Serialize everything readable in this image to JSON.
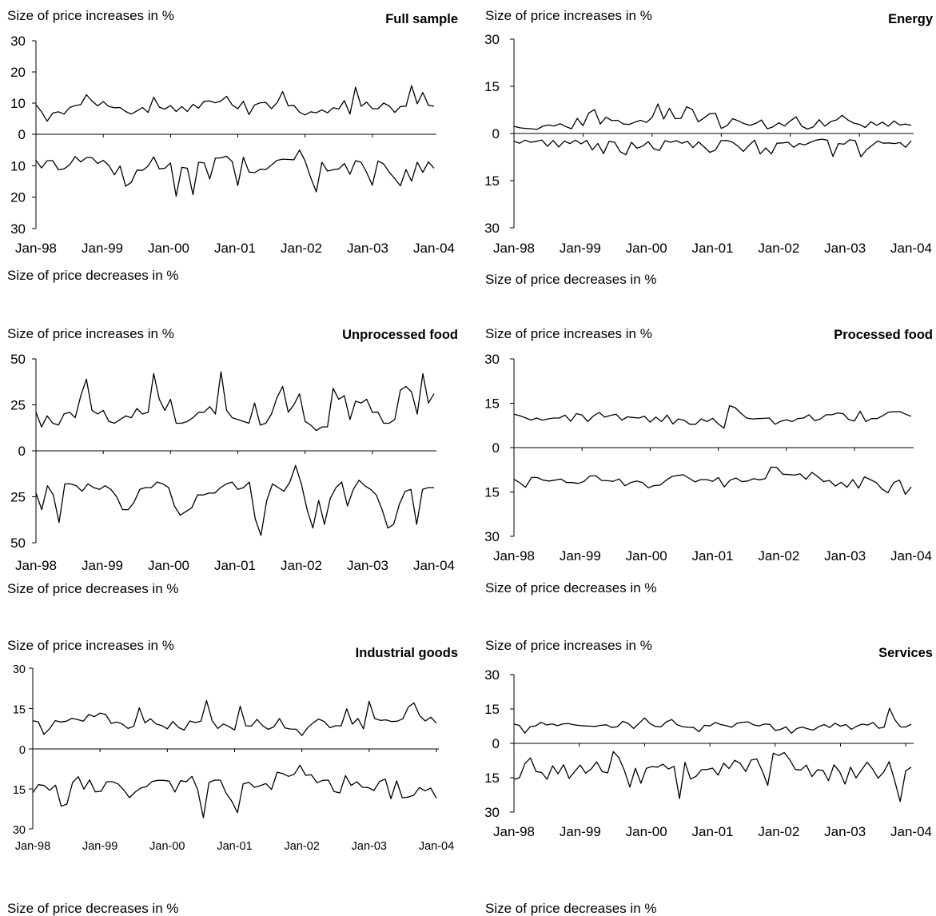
{
  "chart_data": [
    {
      "type": "line",
      "title": "Full sample",
      "ylabel_top": "Size of price increases in %",
      "ylabel_bottom": "Size of price decreases in %",
      "yticks": [
        30,
        20,
        10,
        0,
        10,
        20,
        30
      ],
      "xticks": [
        "Jan-98",
        "Jan-99",
        "Jan-00",
        "Jan-01",
        "Jan-02",
        "Jan-03",
        "Jan-04"
      ],
      "y_range": [
        -30,
        30
      ],
      "series": [
        {
          "values": [
            9.5,
            7.2,
            4.2,
            6.8,
            7.2,
            6.5,
            8.6,
            9.2,
            9.5,
            12.7,
            10.7,
            9.1,
            10.5,
            8.9,
            8.5,
            8.6,
            7.3,
            6.5,
            7.5,
            8.6,
            7.0,
            11.9,
            8.7,
            8.1,
            9.2,
            7.3,
            8.9,
            7.3,
            9.6,
            8.4,
            10.6,
            10.7,
            10.1,
            10.7,
            12.2,
            9.4,
            8.2,
            10.6,
            6.3,
            9.4,
            10.1,
            10.2,
            8.2,
            10.1,
            13.7,
            9.1,
            9.3,
            7.1,
            6.2,
            7.2,
            6.9,
            7.8,
            6.9,
            8.5,
            8.1,
            10.8,
            6.5,
            15.1,
            9.0,
            10.3,
            8.2,
            8.2,
            10.0,
            9.1,
            7.0,
            8.9,
            9.0,
            15.6,
            9.8,
            13.4,
            9.3,
            9.0
          ]
        },
        {
          "values": [
            -8.3,
            -10.7,
            -8.4,
            -8.4,
            -11.3,
            -11.0,
            -9.7,
            -7.1,
            -8.8,
            -7.4,
            -7.4,
            -9.3,
            -8.3,
            -9.9,
            -12.9,
            -10.1,
            -16.5,
            -15.3,
            -11.4,
            -11.5,
            -10.1,
            -7.2,
            -11.0,
            -10.8,
            -9.1,
            -19.7,
            -10.5,
            -10.8,
            -19.2,
            -8.9,
            -9.1,
            -14.2,
            -7.6,
            -7.5,
            -7.0,
            -8.7,
            -16.3,
            -7.3,
            -12.0,
            -12.2,
            -11.1,
            -11.2,
            -9.8,
            -8.3,
            -7.9,
            -8.0,
            -8.1,
            -5.0,
            -8.5,
            -13.8,
            -18.3,
            -8.9,
            -11.7,
            -11.3,
            -11.0,
            -9.3,
            -12.7,
            -8.4,
            -8.9,
            -12.2,
            -16.2,
            -8.5,
            -9.4,
            -12.0,
            -14.1,
            -16.4,
            -11.2,
            -14.9,
            -8.9,
            -12.1,
            -8.8,
            -10.8
          ]
        }
      ]
    },
    {
      "type": "line",
      "title": "Energy",
      "ylabel_top": "Size of price increases in %",
      "ylabel_bottom": "Size of price decreases in %",
      "yticks": [
        30,
        15,
        0,
        15,
        30
      ],
      "xticks": [
        "Jan-98",
        "Jan-99",
        "Jan-00",
        "Jan-01",
        "Jan-02",
        "Jan-03",
        "Jan-04"
      ],
      "y_range": [
        -30,
        30
      ],
      "series": [
        {
          "values": [
            2.3,
            1.8,
            1.6,
            1.5,
            1.3,
            2.3,
            2.7,
            2.4,
            3.1,
            2.2,
            1.5,
            4.8,
            2.5,
            6.5,
            7.6,
            3.0,
            5.2,
            4.1,
            4.2,
            3.0,
            2.9,
            3.6,
            4.2,
            3.5,
            5.1,
            9.4,
            4.6,
            8.0,
            4.7,
            4.8,
            8.5,
            7.6,
            3.7,
            4.9,
            6.3,
            6.4,
            1.6,
            2.5,
            4.7,
            4.0,
            3.1,
            2.6,
            3.2,
            4.3,
            1.5,
            2.1,
            3.4,
            2.4,
            4.0,
            5.3,
            2.3,
            1.4,
            2.1,
            4.4,
            2.3,
            3.8,
            4.3,
            5.8,
            4.3,
            3.3,
            2.9,
            1.9,
            3.7,
            2.6,
            3.6,
            2.3,
            4.0,
            2.7,
            3.0,
            2.6
          ]
        },
        {
          "values": [
            -2.5,
            -3.1,
            -2.1,
            -2.8,
            -2.5,
            -2.1,
            -4.1,
            -2.2,
            -4.3,
            -2.4,
            -3.2,
            -2.1,
            -3.3,
            -2.2,
            -5.2,
            -3.2,
            -6.4,
            -2.5,
            -2.8,
            -5.8,
            -6.8,
            -2.8,
            -4.7,
            -4.0,
            -2.6,
            -4.9,
            -5.4,
            -2.3,
            -2.8,
            -2.3,
            -3.1,
            -2.5,
            -4.5,
            -2.7,
            -4.3,
            -6.0,
            -5.3,
            -2.3,
            -2.2,
            -2.7,
            -4.0,
            -5.7,
            -3.8,
            -2.1,
            -6.5,
            -4.6,
            -6.5,
            -3.1,
            -3.0,
            -2.8,
            -4.4,
            -3.2,
            -3.6,
            -2.8,
            -2.1,
            -1.8,
            -2.1,
            -7.3,
            -3.2,
            -3.4,
            -2.0,
            -2.3,
            -7.4,
            -5.2,
            -3.8,
            -2.4,
            -3.1,
            -3.0,
            -3.2,
            -2.9,
            -4.4,
            -2.3
          ]
        }
      ]
    },
    {
      "type": "line",
      "title": "Unprocessed food",
      "ylabel_top": "Size of price increases in %",
      "ylabel_bottom": "Size of price decreases in %",
      "yticks": [
        50,
        25,
        0,
        25,
        50
      ],
      "xticks": [
        "Jan-98",
        "Jan-99",
        "Jan-00",
        "Jan-01",
        "Jan-02",
        "Jan-03",
        "Jan-04"
      ],
      "y_range": [
        -50,
        50
      ],
      "series": [
        {
          "values": [
            21,
            13,
            19,
            15,
            14,
            20,
            21,
            18,
            30,
            39,
            22,
            20,
            22,
            16,
            15,
            17,
            19,
            18,
            23,
            20,
            21,
            42,
            28,
            22,
            28,
            15,
            15,
            16,
            18,
            21,
            21,
            24,
            20,
            43,
            22,
            18,
            17,
            16,
            15,
            26,
            14,
            15,
            20,
            29,
            35,
            21,
            25,
            31,
            16,
            14,
            11,
            13,
            13,
            34,
            28,
            30,
            17,
            27,
            26,
            28,
            21,
            21,
            15,
            15,
            17,
            33,
            35,
            32,
            20,
            42,
            26,
            31
          ]
        },
        {
          "values": [
            -23,
            -32,
            -19,
            -24,
            -39,
            -18,
            -18,
            -19,
            -22,
            -18,
            -20,
            -21,
            -19,
            -21,
            -25,
            -32,
            -32,
            -28,
            -21,
            -20,
            -20,
            -17,
            -18,
            -20,
            -30,
            -35,
            -33,
            -31,
            -24,
            -24,
            -23,
            -23,
            -20,
            -18,
            -17,
            -21,
            -20,
            -17,
            -37,
            -46,
            -27,
            -18,
            -20,
            -22,
            -17,
            -8,
            -18,
            -32,
            -42,
            -27,
            -40,
            -26,
            -20,
            -17,
            -30,
            -21,
            -16,
            -19,
            -21,
            -24,
            -32,
            -42,
            -40,
            -29,
            -22,
            -21,
            -40,
            -21,
            -20,
            -20
          ]
        }
      ]
    },
    {
      "type": "line",
      "title": "Processed food",
      "ylabel_top": "Size of price increases in %",
      "ylabel_bottom": "Size of price decreases in %",
      "yticks": [
        30,
        15,
        0,
        15,
        30
      ],
      "xticks": [
        "Jan-98",
        "Jan-99",
        "Jan-00",
        "Jan-01",
        "Jan-02",
        "Jan-03",
        "Jan-04"
      ],
      "y_range": [
        -30,
        30
      ],
      "series": [
        {
          "values": [
            11.3,
            10.8,
            10.1,
            9.3,
            10.0,
            9.3,
            9.7,
            10.0,
            10.0,
            11.0,
            8.9,
            11.5,
            11.0,
            8.8,
            10.7,
            11.9,
            10.3,
            10.9,
            11.3,
            9.3,
            10.4,
            10.2,
            10.0,
            10.6,
            8.6,
            10.3,
            8.8,
            11.0,
            8.0,
            9.7,
            9.2,
            7.9,
            7.9,
            9.7,
            8.8,
            9.9,
            8.0,
            6.6,
            14.2,
            13.5,
            11.6,
            10.0,
            9.7,
            9.8,
            9.9,
            10.0,
            7.9,
            8.9,
            9.4,
            8.8,
            9.8,
            10.0,
            11.1,
            9.1,
            9.7,
            11.1,
            11.1,
            11.7,
            11.5,
            9.5,
            9.0,
            12.3,
            8.8,
            9.8,
            9.8,
            10.8,
            12.0,
            12.1,
            12.2,
            11.3,
            10.6
          ]
        },
        {
          "values": [
            -10.7,
            -11.9,
            -13.4,
            -10.1,
            -10.1,
            -11.0,
            -11.3,
            -11.0,
            -10.6,
            -11.8,
            -11.8,
            -12.1,
            -11.4,
            -9.6,
            -9.5,
            -11.1,
            -11.2,
            -11.4,
            -10.6,
            -12.9,
            -11.8,
            -11.3,
            -11.8,
            -13.6,
            -12.8,
            -12.7,
            -11.1,
            -9.8,
            -9.4,
            -9.2,
            -10.4,
            -11.6,
            -10.8,
            -10.8,
            -11.4,
            -10.1,
            -13.3,
            -11.0,
            -10.3,
            -11.5,
            -11.3,
            -10.5,
            -10.9,
            -10.5,
            -6.6,
            -6.7,
            -9.0,
            -9.1,
            -9.3,
            -8.9,
            -10.7,
            -8.4,
            -9.8,
            -11.5,
            -11.1,
            -13.0,
            -11.7,
            -13.4,
            -10.8,
            -13.7,
            -9.9,
            -10.8,
            -11.8,
            -14.0,
            -15.3,
            -11.8,
            -11.0,
            -15.8,
            -13.3
          ]
        }
      ]
    },
    {
      "type": "line",
      "title": "Industrial goods",
      "ylabel_top": "Size of price increases in %",
      "ylabel_bottom": "Size of price decreases in %",
      "yticks": [
        30,
        15,
        0,
        15,
        30
      ],
      "xticks": [
        "Jan-98",
        "Jan-99",
        "Jan-00",
        "Jan-01",
        "Jan-02",
        "Jan-03",
        "Jan-04"
      ],
      "y_range": [
        -30,
        30
      ],
      "series": [
        {
          "values": [
            10.5,
            10.0,
            5.4,
            7.5,
            10.5,
            10.0,
            10.3,
            11.4,
            10.9,
            10.3,
            12.8,
            12.0,
            13.3,
            12.8,
            9.5,
            10.0,
            9.2,
            7.6,
            8.4,
            15.3,
            9.7,
            11.2,
            9.3,
            8.7,
            7.5,
            10.2,
            8.0,
            7.0,
            10.4,
            9.8,
            10.3,
            18.0,
            10.5,
            7.6,
            9.3,
            8.3,
            7.0,
            15.9,
            8.6,
            8.5,
            11.0,
            8.6,
            7.3,
            8.2,
            11.3,
            7.8,
            7.4,
            7.3,
            5.0,
            7.8,
            9.7,
            11.1,
            10.2,
            7.9,
            8.6,
            8.6,
            14.9,
            9.2,
            11.3,
            7.5,
            17.7,
            11.3,
            10.6,
            10.8,
            10.2,
            10.3,
            11.2,
            15.6,
            17.1,
            12.4,
            10.4,
            11.8,
            9.6
          ]
        },
        {
          "values": [
            -16.4,
            -13.4,
            -13.7,
            -15.5,
            -13.6,
            -21.5,
            -20.7,
            -12.6,
            -10.4,
            -15.1,
            -11.6,
            -16.1,
            -15.9,
            -12.3,
            -12.3,
            -13.1,
            -15.4,
            -18.3,
            -16.2,
            -14.7,
            -14.1,
            -12.2,
            -11.8,
            -11.8,
            -12.1,
            -16.2,
            -11.9,
            -12.3,
            -10.3,
            -15.3,
            -25.8,
            -12.6,
            -11.7,
            -11.7,
            -16.6,
            -19.6,
            -23.9,
            -13.1,
            -12.5,
            -14.4,
            -13.8,
            -13.0,
            -15.2,
            -8.7,
            -9.3,
            -10.3,
            -9.5,
            -6.1,
            -9.9,
            -9.7,
            -12.7,
            -11.8,
            -11.7,
            -16.0,
            -16.5,
            -10.0,
            -13.7,
            -12.3,
            -14.4,
            -14.5,
            -15.6,
            -12.2,
            -11.3,
            -18.7,
            -12.0,
            -18.3,
            -18.1,
            -17.4,
            -14.5,
            -15.7,
            -14.7,
            -18.5
          ]
        }
      ]
    },
    {
      "type": "line",
      "title": "Services",
      "ylabel_top": "Size of price increases in %",
      "ylabel_bottom": "Size of price decreases in %",
      "yticks": [
        30,
        15,
        0,
        15,
        30
      ],
      "xticks": [
        "Jan-98",
        "Jan-99",
        "Jan-00",
        "Jan-01",
        "Jan-02",
        "Jan-03",
        "Jan-04"
      ],
      "y_range": [
        -30,
        30
      ],
      "series": [
        {
          "values": [
            8.4,
            7.8,
            4.5,
            7.3,
            7.6,
            9.2,
            8.0,
            8.5,
            7.7,
            8.5,
            8.6,
            8.1,
            7.8,
            7.6,
            7.5,
            7.4,
            7.9,
            8.1,
            6.9,
            7.3,
            9.6,
            8.7,
            6.5,
            8.8,
            11.1,
            8.6,
            7.4,
            7.2,
            9.4,
            10.4,
            8.1,
            7.3,
            7.0,
            6.9,
            5.1,
            7.9,
            7.6,
            9.1,
            8.2,
            7.7,
            7.0,
            8.8,
            9.2,
            9.4,
            8.1,
            7.6,
            8.4,
            8.3,
            5.6,
            6.1,
            7.2,
            4.4,
            6.5,
            7.1,
            6.3,
            5.8,
            7.3,
            8.2,
            6.9,
            8.8,
            7.5,
            8.2,
            6.1,
            7.5,
            8.4,
            8.0,
            9.1,
            6.6,
            7.0,
            15.3,
            10.3,
            7.2,
            7.1,
            8.4
          ]
        },
        {
          "values": [
            -15.7,
            -15.0,
            -8.8,
            -6.4,
            -12.3,
            -12.7,
            -15.7,
            -9.8,
            -13.3,
            -9.3,
            -15.3,
            -12.3,
            -9.5,
            -13.0,
            -11.2,
            -8.1,
            -12.3,
            -12.9,
            -3.6,
            -6.2,
            -11.8,
            -19.1,
            -10.9,
            -17.4,
            -10.9,
            -10.1,
            -10.4,
            -9.1,
            -11.2,
            -10.0,
            -24.1,
            -8.3,
            -15.6,
            -14.4,
            -11.5,
            -11.4,
            -10.8,
            -13.9,
            -8.7,
            -11.0,
            -7.4,
            -8.7,
            -12.3,
            -7.3,
            -6.8,
            -12.0,
            -18.3,
            -4.3,
            -5.3,
            -4.0,
            -7.2,
            -11.4,
            -11.6,
            -9.5,
            -14.5,
            -11.5,
            -11.8,
            -16.3,
            -9.4,
            -12.3,
            -17.8,
            -10.4,
            -15.1,
            -11.6,
            -8.2,
            -11.2,
            -15.2,
            -12.6,
            -8.0,
            -16.3,
            -25.4,
            -12.0,
            -10.4
          ]
        }
      ]
    }
  ]
}
